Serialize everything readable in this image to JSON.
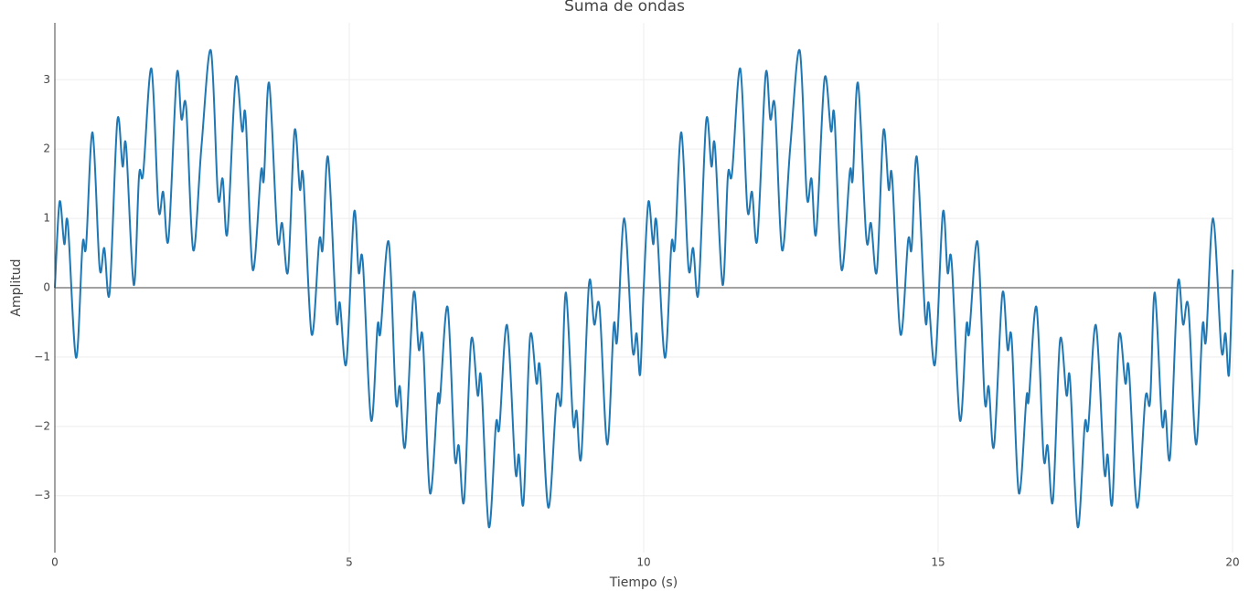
{
  "chart_data": {
    "type": "line",
    "title": "Suma de ondas",
    "x_label": "Tiempo (s)",
    "y_label": "Amplitud",
    "color": "#1f77b4",
    "grid": true,
    "xlim": [
      0,
      20
    ],
    "xticks": [
      0,
      5,
      10,
      15,
      20
    ],
    "ylim": [
      -3.82,
      3.82
    ],
    "yticks": [
      {
        "value": -3,
        "label": "−3"
      },
      {
        "value": -2,
        "label": "−2"
      },
      {
        "value": -1,
        "label": "−1"
      },
      0,
      1,
      2,
      3
    ],
    "x": [
      0,
      0.08,
      0.16,
      0.22,
      0.36,
      0.47,
      0.53,
      0.64,
      0.76,
      0.84,
      0.93,
      1.06,
      1.15,
      1.21,
      1.34,
      1.43,
      1.5,
      1.64,
      1.76,
      1.84,
      1.93,
      2.07,
      2.15,
      2.23,
      2.35,
      2.49,
      2.65,
      2.77,
      2.85,
      2.93,
      3.07,
      3.18,
      3.24,
      3.36,
      3.5,
      3.55,
      3.64,
      3.78,
      3.86,
      3.96,
      4.07,
      4.16,
      4.22,
      4.36,
      4.49,
      4.55,
      4.64,
      4.78,
      4.84,
      4.95,
      5.08,
      5.16,
      5.23,
      5.37,
      5.48,
      5.53,
      5.67,
      5.79,
      5.86,
      5.95,
      6.09,
      6.18,
      6.25,
      6.37,
      6.5,
      6.54,
      6.67,
      6.79,
      6.86,
      6.95,
      7.07,
      7.18,
      7.24,
      7.37,
      7.49,
      7.55,
      7.68,
      7.82,
      7.88,
      7.96,
      8.07,
      8.18,
      8.24,
      8.38,
      8.52,
      8.6,
      8.68,
      8.8,
      8.86,
      8.94,
      9.07,
      9.16,
      9.25,
      9.38,
      9.49,
      9.55,
      9.67,
      9.81,
      9.88,
      9.94,
      10,
      10.08,
      10.16,
      10.22,
      10.36,
      10.47,
      10.53,
      10.64,
      10.76,
      10.84,
      10.93,
      11.06,
      11.15,
      11.21,
      11.34,
      11.43,
      11.5,
      11.64,
      11.76,
      11.84,
      11.93,
      12.07,
      12.15,
      12.23,
      12.35,
      12.49,
      12.65,
      12.77,
      12.85,
      12.93,
      13.07,
      13.18,
      13.24,
      13.36,
      13.5,
      13.55,
      13.64,
      13.78,
      13.86,
      13.96,
      14.07,
      14.16,
      14.22,
      14.36,
      14.49,
      14.55,
      14.64,
      14.78,
      14.84,
      14.95,
      15.08,
      15.16,
      15.23,
      15.37,
      15.48,
      15.53,
      15.67,
      15.79,
      15.86,
      15.95,
      16.09,
      16.18,
      16.25,
      16.37,
      16.5,
      16.54,
      16.67,
      16.79,
      16.86,
      16.95,
      17.07,
      17.18,
      17.24,
      17.37,
      17.49,
      17.55,
      17.68,
      17.82,
      17.88,
      17.96,
      18.07,
      18.18,
      18.24,
      18.38,
      18.52,
      18.6,
      18.68,
      18.8,
      18.86,
      18.94,
      19.07,
      19.16,
      19.25,
      19.38,
      19.49,
      19.55,
      19.67,
      19.81,
      19.88,
      19.94,
      20
    ],
    "values": [
      0,
      1.24,
      0.63,
      0.93,
      -1.01,
      0.62,
      0.6,
      2.24,
      0.29,
      0.57,
      -0.07,
      2.4,
      1.75,
      2.04,
      0.04,
      1.62,
      1.65,
      3.16,
      1.14,
      1.38,
      0.7,
      3.07,
      2.43,
      2.6,
      0.54,
      2.04,
      3.42,
      1.32,
      1.57,
      0.79,
      3.01,
      2.26,
      2.46,
      0.26,
      1.67,
      1.57,
      2.95,
      0.72,
      0.93,
      0.24,
      2.26,
      1.42,
      1.58,
      -0.67,
      0.68,
      0.57,
      1.88,
      -0.43,
      -0.22,
      -1.09,
      1.08,
      0.22,
      0.37,
      -1.91,
      -0.55,
      -0.64,
      0.66,
      -1.61,
      -1.43,
      -2.28,
      -0.09,
      -0.89,
      -0.75,
      -2.96,
      -1.58,
      -1.61,
      -0.28,
      -2.43,
      -2.28,
      -3.07,
      -0.76,
      -1.55,
      -1.32,
      -3.45,
      -1.97,
      -2.01,
      -0.54,
      -2.63,
      -2.41,
      -3.09,
      -0.71,
      -1.38,
      -1.17,
      -3.17,
      -1.59,
      -1.64,
      -0.07,
      -1.93,
      -1.78,
      -2.43,
      0.05,
      -0.53,
      -0.28,
      -2.26,
      -0.55,
      -0.75,
      1.0,
      -0.89,
      -0.66,
      -1.25,
      0,
      1.24,
      0.63,
      0.93,
      -1.01,
      0.62,
      0.6,
      2.24,
      0.29,
      0.57,
      -0.07,
      2.4,
      1.75,
      2.04,
      0.04,
      1.62,
      1.65,
      3.16,
      1.14,
      1.38,
      0.7,
      3.07,
      2.43,
      2.6,
      0.54,
      2.04,
      3.42,
      1.32,
      1.57,
      0.79,
      3.01,
      2.26,
      2.46,
      0.26,
      1.67,
      1.57,
      2.95,
      0.72,
      0.93,
      0.24,
      2.26,
      1.42,
      1.58,
      -0.67,
      0.68,
      0.57,
      1.88,
      -0.43,
      -0.22,
      -1.09,
      1.08,
      0.22,
      0.37,
      -1.91,
      -0.55,
      -0.64,
      0.66,
      -1.61,
      -1.43,
      -2.28,
      -0.09,
      -0.89,
      -0.75,
      -2.96,
      -1.58,
      -1.61,
      -0.28,
      -2.43,
      -2.28,
      -3.07,
      -0.76,
      -1.55,
      -1.32,
      -3.45,
      -1.97,
      -2.01,
      -0.54,
      -2.63,
      -2.41,
      -3.09,
      -0.71,
      -1.38,
      -1.17,
      -3.17,
      -1.59,
      -1.64,
      -0.07,
      -1.93,
      -1.78,
      -2.43,
      0.05,
      -0.53,
      -0.28,
      -2.26,
      -0.55,
      -0.75,
      1.0,
      -0.89,
      -0.66,
      -1.25,
      0.26
    ]
  }
}
